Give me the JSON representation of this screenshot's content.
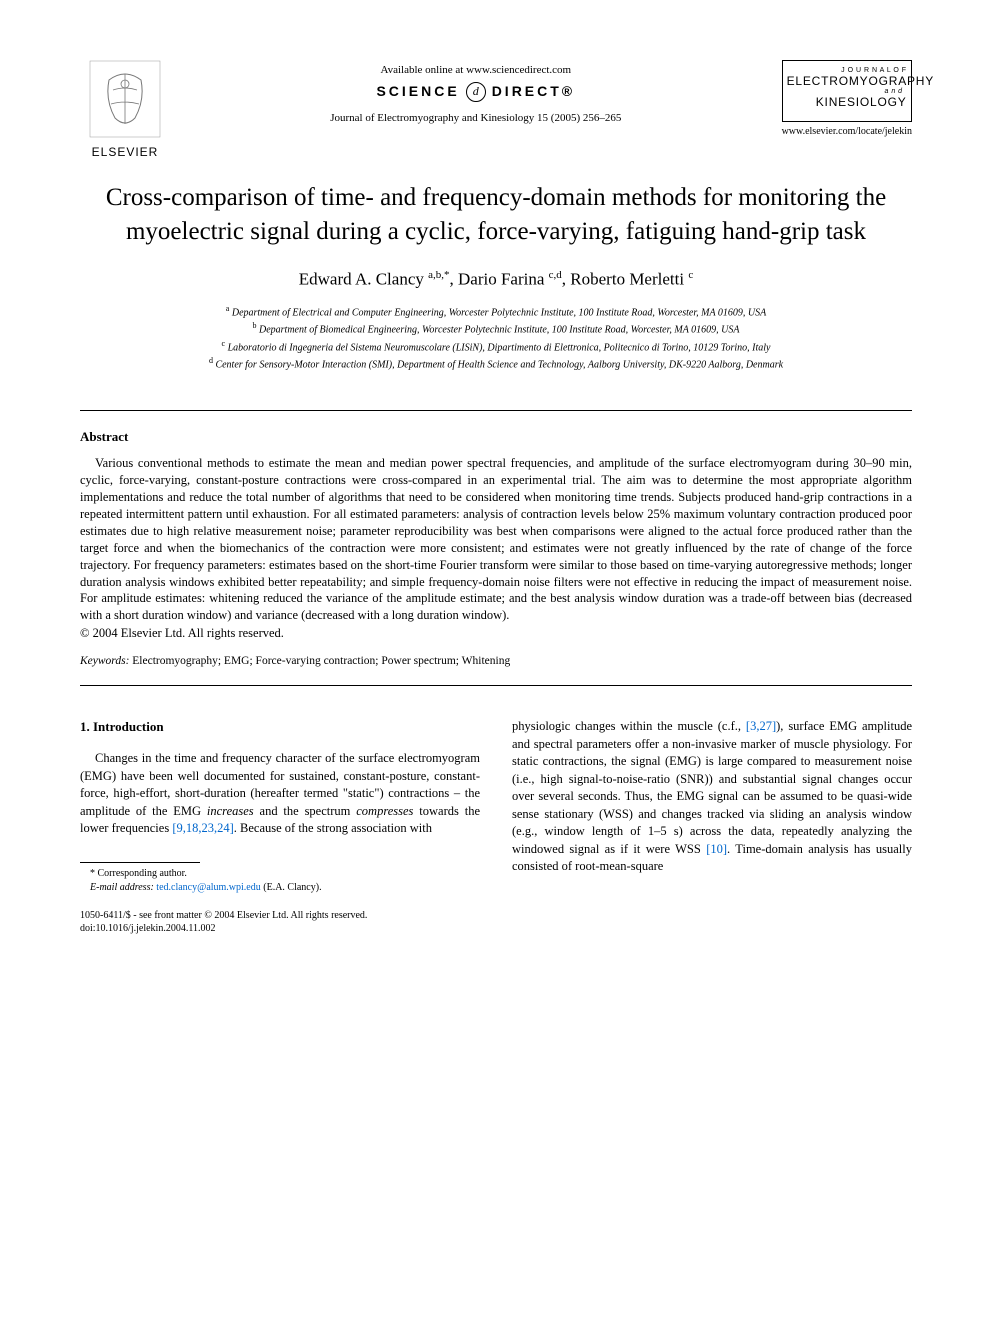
{
  "header": {
    "publisher_name": "ELSEVIER",
    "available_text": "Available online at www.sciencedirect.com",
    "sd_text_left": "SCIENCE",
    "sd_circle": "d",
    "sd_text_right": "DIRECT®",
    "journal_ref": "Journal of Electromyography and Kinesiology 15 (2005) 256–265",
    "journal_box": {
      "line1": "J O U R N A L   O F",
      "line2": "ELECTROMYOGRAPHY",
      "line3": "a n d",
      "line4": "KINESIOLOGY"
    },
    "locate_url": "www.elsevier.com/locate/jelekin"
  },
  "title": "Cross-comparison of time- and frequency-domain methods for monitoring the myoelectric signal during a cyclic, force-varying, fatiguing hand-grip task",
  "authors_html": "Edward A. Clancy <sup>a,b,*</sup>, Dario Farina <sup>c,d</sup>, Roberto Merletti <sup>c</sup>",
  "affiliations": [
    {
      "marker": "a",
      "text": "Department of Electrical and Computer Engineering, Worcester Polytechnic Institute, 100 Institute Road, Worcester, MA 01609, USA"
    },
    {
      "marker": "b",
      "text": "Department of Biomedical Engineering, Worcester Polytechnic Institute, 100 Institute Road, Worcester, MA 01609, USA"
    },
    {
      "marker": "c",
      "text": "Laboratorio di Ingegneria del Sistema Neuromuscolare (LISiN), Dipartimento di Elettronica, Politecnico di Torino, 10129 Torino, Italy"
    },
    {
      "marker": "d",
      "text": "Center for Sensory-Motor Interaction (SMI), Department of Health Science and Technology, Aalborg University, DK-9220 Aalborg, Denmark"
    }
  ],
  "abstract": {
    "heading": "Abstract",
    "body": "Various conventional methods to estimate the mean and median power spectral frequencies, and amplitude of the surface electromyogram during 30–90 min, cyclic, force-varying, constant-posture contractions were cross-compared in an experimental trial. The aim was to determine the most appropriate algorithm implementations and reduce the total number of algorithms that need to be considered when monitoring time trends. Subjects produced hand-grip contractions in a repeated intermittent pattern until exhaustion. For all estimated parameters: analysis of contraction levels below 25% maximum voluntary contraction produced poor estimates due to high relative measurement noise; parameter reproducibility was best when comparisons were aligned to the actual force produced rather than the target force and when the biomechanics of the contraction were more consistent; and estimates were not greatly influenced by the rate of change of the force trajectory. For frequency parameters: estimates based on the short-time Fourier transform were similar to those based on time-varying autoregressive methods; longer duration analysis windows exhibited better repeatability; and simple frequency-domain noise filters were not effective in reducing the impact of measurement noise. For amplitude estimates: whitening reduced the variance of the amplitude estimate; and the best analysis window duration was a trade-off between bias (decreased with a short duration window) and variance (decreased with a long duration window).",
    "copyright": "© 2004 Elsevier Ltd. All rights reserved."
  },
  "keywords": {
    "label": "Keywords:",
    "list": "Electromyography; EMG; Force-varying contraction; Power spectrum; Whitening"
  },
  "section1": {
    "heading": "1. Introduction",
    "col1": "Changes in the time and frequency character of the surface electromyogram (EMG) have been well documented for sustained, constant-posture, constant-force, high-effort, short-duration (hereafter termed \"static\") contractions – the amplitude of the EMG increases and the spectrum compresses towards the lower frequencies [9,18,23,24]. Because of the strong association with",
    "col2": "physiologic changes within the muscle (c.f., [3,27]), surface EMG amplitude and spectral parameters offer a non-invasive marker of muscle physiology. For static contractions, the signal (EMG) is large compared to measurement noise (i.e., high signal-to-noise-ratio (SNR)) and substantial signal changes occur over several seconds. Thus, the EMG signal can be assumed to be quasi-wide sense stationary (WSS) and changes tracked via sliding an analysis window (e.g., window length of 1–5 s) across the data, repeatedly analyzing the windowed signal as if it were WSS [10]. Time-domain analysis has usually consisted of root-mean-square",
    "refs_col1": "[9,18,23,24]",
    "refs_col2a": "[3,27]",
    "refs_col2b": "[10]"
  },
  "footnote": {
    "corresponding": "* Corresponding author.",
    "email_label": "E-mail address:",
    "email": "ted.clancy@alum.wpi.edu",
    "email_person": "(E.A. Clancy)."
  },
  "footer": {
    "line1": "1050-6411/$ - see front matter © 2004 Elsevier Ltd. All rights reserved.",
    "line2": "doi:10.1016/j.jelekin.2004.11.002"
  },
  "colors": {
    "text": "#000000",
    "link": "#0066cc",
    "background": "#ffffff"
  },
  "typography": {
    "title_fontsize": 25,
    "body_fontsize": 12.5,
    "author_fontsize": 17,
    "affiliation_fontsize": 10,
    "font_family": "Georgia, Times New Roman, serif"
  }
}
